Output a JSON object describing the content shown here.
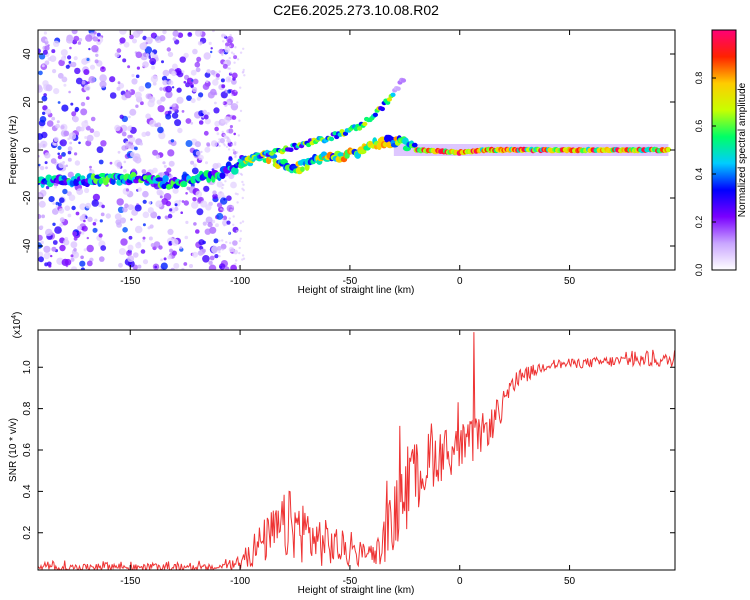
{
  "figure": {
    "title": "C2E6.2025.273.10.08.R02"
  },
  "chart_data": [
    {
      "type": "heatmap",
      "name": "spectrogram",
      "xlabel": "Height of straight line (km)",
      "ylabel": "Frequency (Hz)",
      "xlim": [
        -192,
        98
      ],
      "ylim": [
        -50,
        50
      ],
      "x_ticks": [
        -150,
        -100,
        -50,
        0,
        50
      ],
      "y_ticks": [
        -40,
        -20,
        0,
        20,
        40
      ],
      "colorbar": {
        "label": "Normalized spectral amplitude",
        "range": [
          0,
          1
        ],
        "ticks": [
          0.0,
          0.2,
          0.4,
          0.6,
          0.8
        ],
        "tick_labels": [
          "0.0",
          "0.2",
          "0.4",
          "0.6",
          "0.8"
        ],
        "colors": [
          "#ffffff",
          "#c9a6ff",
          "#7a00ff",
          "#0000ff",
          "#00ccff",
          "#00ff66",
          "#c8ff00",
          "#ffcc00",
          "#ff2200",
          "#ff0077"
        ]
      },
      "main_trace": [
        {
          "x": -192,
          "y": -13
        },
        {
          "x": -160,
          "y": -12
        },
        {
          "x": -150,
          "y": -12
        },
        {
          "x": -130,
          "y": -14
        },
        {
          "x": -110,
          "y": -10
        },
        {
          "x": -100,
          "y": -6
        },
        {
          "x": -90,
          "y": -2
        },
        {
          "x": -75,
          "y": -8
        },
        {
          "x": -65,
          "y": -4
        },
        {
          "x": -50,
          "y": -2
        },
        {
          "x": -35,
          "y": 4
        },
        {
          "x": -25,
          "y": 3
        },
        {
          "x": -20,
          "y": 0
        },
        {
          "x": 0,
          "y": -1
        },
        {
          "x": 10,
          "y": 0
        },
        {
          "x": 95,
          "y": 0
        }
      ],
      "upper_trace": [
        {
          "x": -100,
          "y": -4
        },
        {
          "x": -80,
          "y": 0
        },
        {
          "x": -60,
          "y": 5
        },
        {
          "x": -45,
          "y": 10
        },
        {
          "x": -35,
          "y": 18
        },
        {
          "x": -25,
          "y": 30
        }
      ]
    },
    {
      "type": "line",
      "name": "snr",
      "xlabel": "Height of straight line (km)",
      "ylabel": "SNR (10 * v/v)",
      "multiplier": "(x10",
      "multiplier_exp": "4",
      "multiplier_close": ")",
      "xlim": [
        -192,
        98
      ],
      "ylim": [
        0.02,
        1.18
      ],
      "x_ticks": [
        -150,
        -100,
        -50,
        0,
        50
      ],
      "y_ticks": [
        0.2,
        0.4,
        0.6,
        0.8,
        1.0
      ],
      "y_tick_labels": [
        "0.2",
        "0.4",
        "0.6",
        "0.8",
        "1.0"
      ],
      "color": "#ee3333",
      "envelope": [
        {
          "x": -192,
          "base": 0.03,
          "amp": 0.02
        },
        {
          "x": -170,
          "base": 0.03,
          "amp": 0.02
        },
        {
          "x": -165,
          "base": 0.04,
          "amp": 0.03
        },
        {
          "x": -150,
          "base": 0.03,
          "amp": 0.02
        },
        {
          "x": -110,
          "base": 0.03,
          "amp": 0.02
        },
        {
          "x": -100,
          "base": 0.05,
          "amp": 0.04
        },
        {
          "x": -95,
          "base": 0.1,
          "amp": 0.1
        },
        {
          "x": -85,
          "base": 0.18,
          "amp": 0.16
        },
        {
          "x": -78,
          "base": 0.22,
          "amp": 0.22
        },
        {
          "x": -72,
          "base": 0.2,
          "amp": 0.2
        },
        {
          "x": -65,
          "base": 0.15,
          "amp": 0.16
        },
        {
          "x": -55,
          "base": 0.12,
          "amp": 0.12
        },
        {
          "x": -45,
          "base": 0.08,
          "amp": 0.07
        },
        {
          "x": -38,
          "base": 0.09,
          "amp": 0.08
        },
        {
          "x": -32,
          "base": 0.2,
          "amp": 0.18
        },
        {
          "x": -26,
          "base": 0.35,
          "amp": 0.25
        },
        {
          "x": -20,
          "base": 0.45,
          "amp": 0.22
        },
        {
          "x": -12,
          "base": 0.55,
          "amp": 0.18
        },
        {
          "x": -5,
          "base": 0.58,
          "amp": 0.15
        },
        {
          "x": 5,
          "base": 0.62,
          "amp": 0.14
        },
        {
          "x": 15,
          "base": 0.72,
          "amp": 0.1
        },
        {
          "x": 22,
          "base": 0.85,
          "amp": 0.08
        },
        {
          "x": 28,
          "base": 0.95,
          "amp": 0.05
        },
        {
          "x": 40,
          "base": 1.01,
          "amp": 0.03
        },
        {
          "x": 60,
          "base": 1.02,
          "amp": 0.03
        },
        {
          "x": 80,
          "base": 1.03,
          "amp": 0.04
        },
        {
          "x": 95,
          "base": 1.03,
          "amp": 0.04
        }
      ],
      "spike": {
        "x": 6.5,
        "y": 1.17
      }
    }
  ]
}
